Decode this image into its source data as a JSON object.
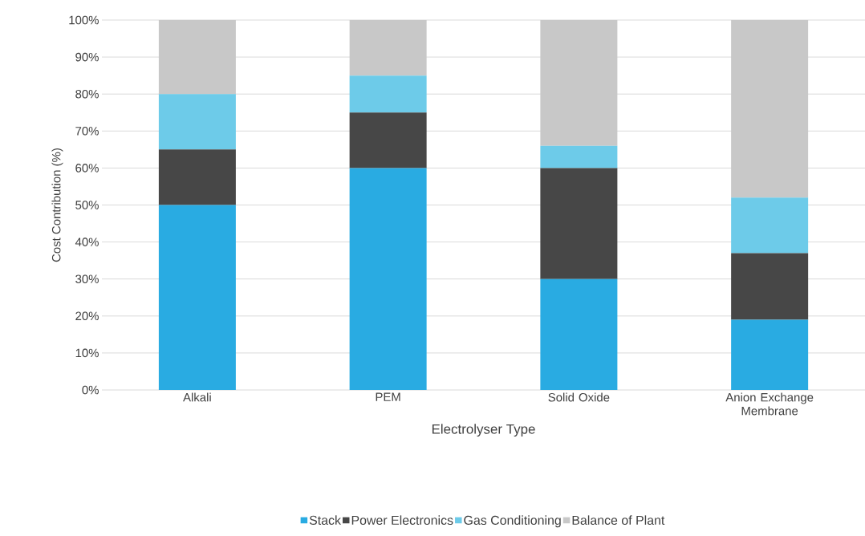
{
  "chart_data": {
    "type": "bar",
    "stacked": true,
    "xlabel": "Electrolyser Type",
    "ylabel": "Cost Contribution (%)",
    "categories": [
      "Alkali",
      "PEM",
      "Solid Oxide",
      "Anion Exchange Membrane"
    ],
    "series": [
      {
        "name": "Stack",
        "color": "#29abe2",
        "values": [
          50,
          60,
          30,
          19
        ]
      },
      {
        "name": "Power Electronics",
        "color": "#474747",
        "values": [
          15,
          15,
          30,
          18
        ]
      },
      {
        "name": "Gas Conditioning",
        "color": "#6dcbe9",
        "values": [
          15,
          10,
          6,
          15
        ]
      },
      {
        "name": "Balance of Plant",
        "color": "#c8c8c8",
        "values": [
          20,
          15,
          34,
          48
        ]
      }
    ],
    "ylim": [
      0,
      100
    ],
    "yticks": [
      {
        "value": 0,
        "label": "0%"
      },
      {
        "value": 10,
        "label": "10%"
      },
      {
        "value": 20,
        "label": "20%"
      },
      {
        "value": 30,
        "label": "30%"
      },
      {
        "value": 40,
        "label": "40%"
      },
      {
        "value": 50,
        "label": "50%"
      },
      {
        "value": 60,
        "label": "60%"
      },
      {
        "value": 70,
        "label": "70%"
      },
      {
        "value": 80,
        "label": "80%"
      },
      {
        "value": 90,
        "label": "90%"
      },
      {
        "value": 100,
        "label": "100%"
      }
    ],
    "grid": "y",
    "legend": "bottom"
  }
}
